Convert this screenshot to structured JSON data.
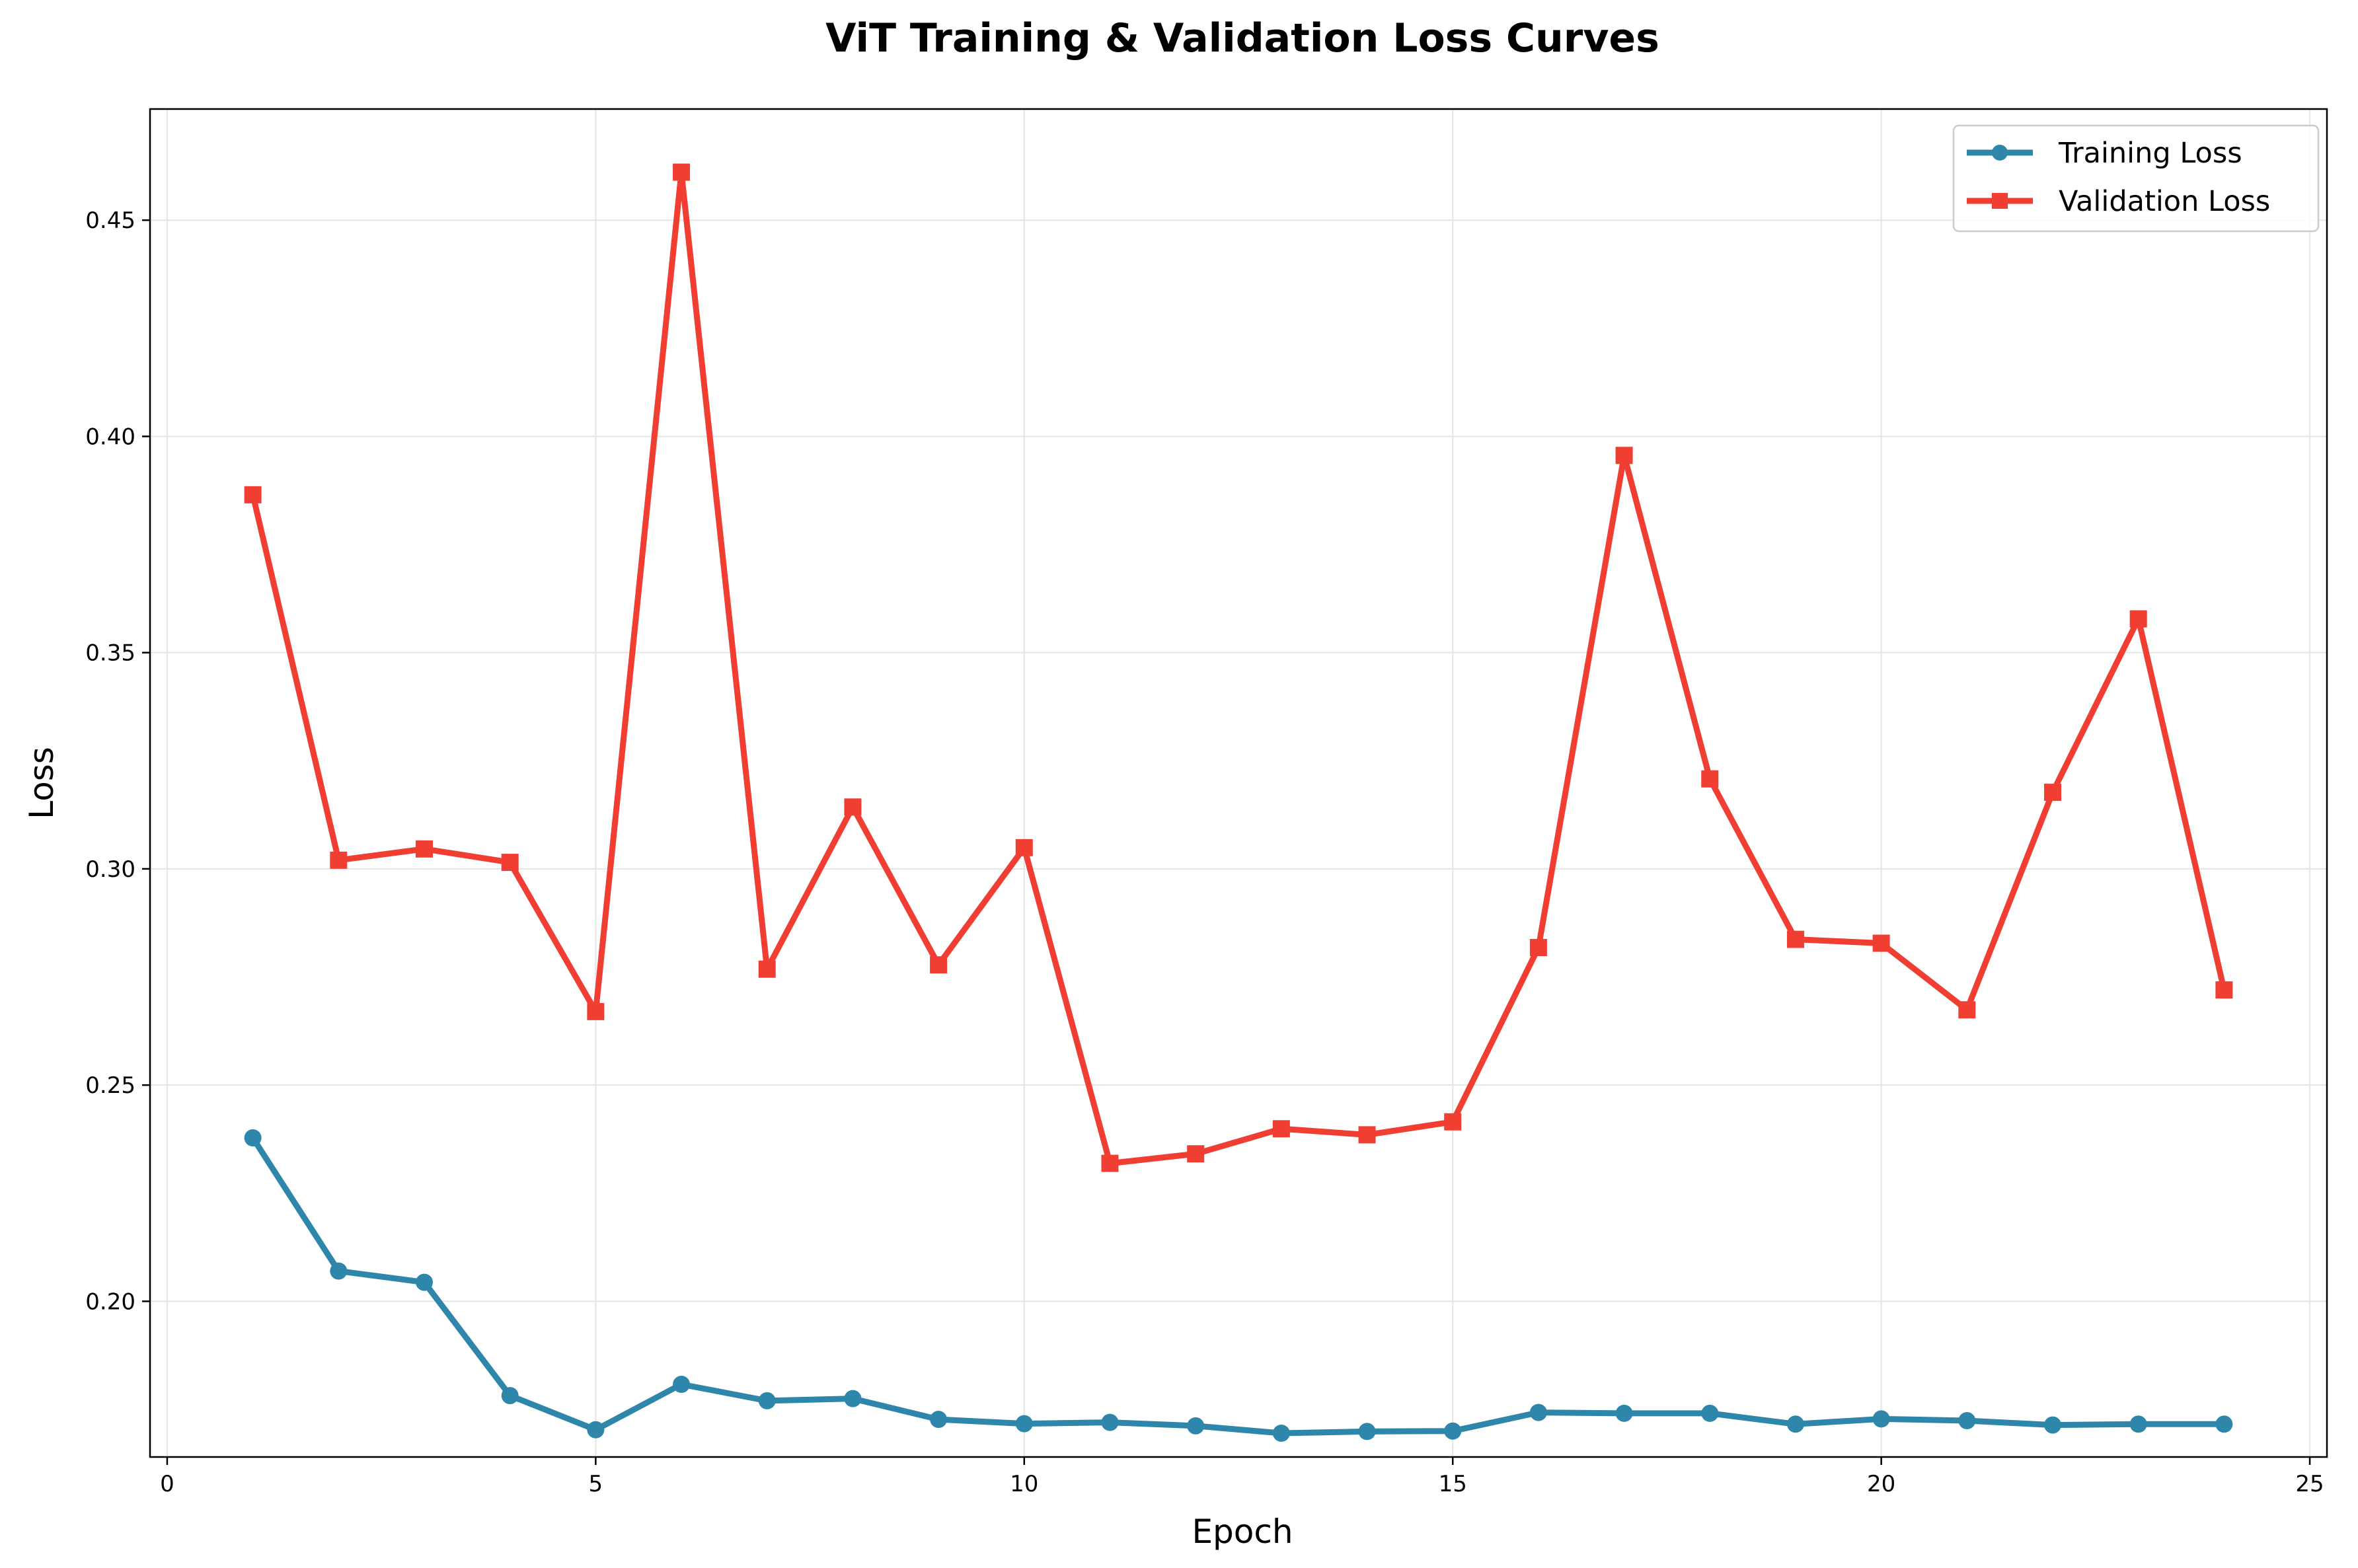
{
  "chart_data": {
    "type": "line",
    "title": "ViT Training & Validation Loss Curves",
    "xlabel": "Epoch",
    "ylabel": "Loss",
    "xlim": [
      -0.2,
      25.2
    ],
    "ylim": [
      0.164,
      0.4757
    ],
    "xticks": [
      0,
      5,
      10,
      15,
      20,
      25
    ],
    "yticks": [
      0.2,
      0.25,
      0.3,
      0.35,
      0.4,
      0.45
    ],
    "xtick_labels": [
      "0",
      "5",
      "10",
      "15",
      "20",
      "25"
    ],
    "ytick_labels": [
      "0.20",
      "0.25",
      "0.30",
      "0.35",
      "0.40",
      "0.45"
    ],
    "grid": true,
    "legend_position": "top-right",
    "x": [
      1,
      2,
      3,
      4,
      5,
      6,
      7,
      8,
      9,
      10,
      11,
      12,
      13,
      14,
      15,
      16,
      17,
      18,
      19,
      20,
      21,
      22,
      23,
      24
    ],
    "series": [
      {
        "name": "Training Loss",
        "color": "#2e86ab",
        "marker": "circle",
        "values": [
          0.2378,
          0.207,
          0.2044,
          0.1782,
          0.1703,
          0.1808,
          0.177,
          0.1775,
          0.1727,
          0.1717,
          0.172,
          0.1712,
          0.1695,
          0.1699,
          0.17,
          0.1743,
          0.1741,
          0.1741,
          0.1716,
          0.1728,
          0.1724,
          0.1714,
          0.1716,
          0.1716
        ]
      },
      {
        "name": "Validation Loss",
        "color": "#f03e33",
        "marker": "square",
        "values": [
          0.3865,
          0.302,
          0.3046,
          0.3015,
          0.267,
          0.4611,
          0.2768,
          0.3143,
          0.2778,
          0.3049,
          0.2319,
          0.2341,
          0.2399,
          0.2385,
          0.2415,
          0.2818,
          0.3956,
          0.3208,
          0.2837,
          0.2828,
          0.2674,
          0.3177,
          0.3578,
          0.272
        ]
      }
    ]
  }
}
